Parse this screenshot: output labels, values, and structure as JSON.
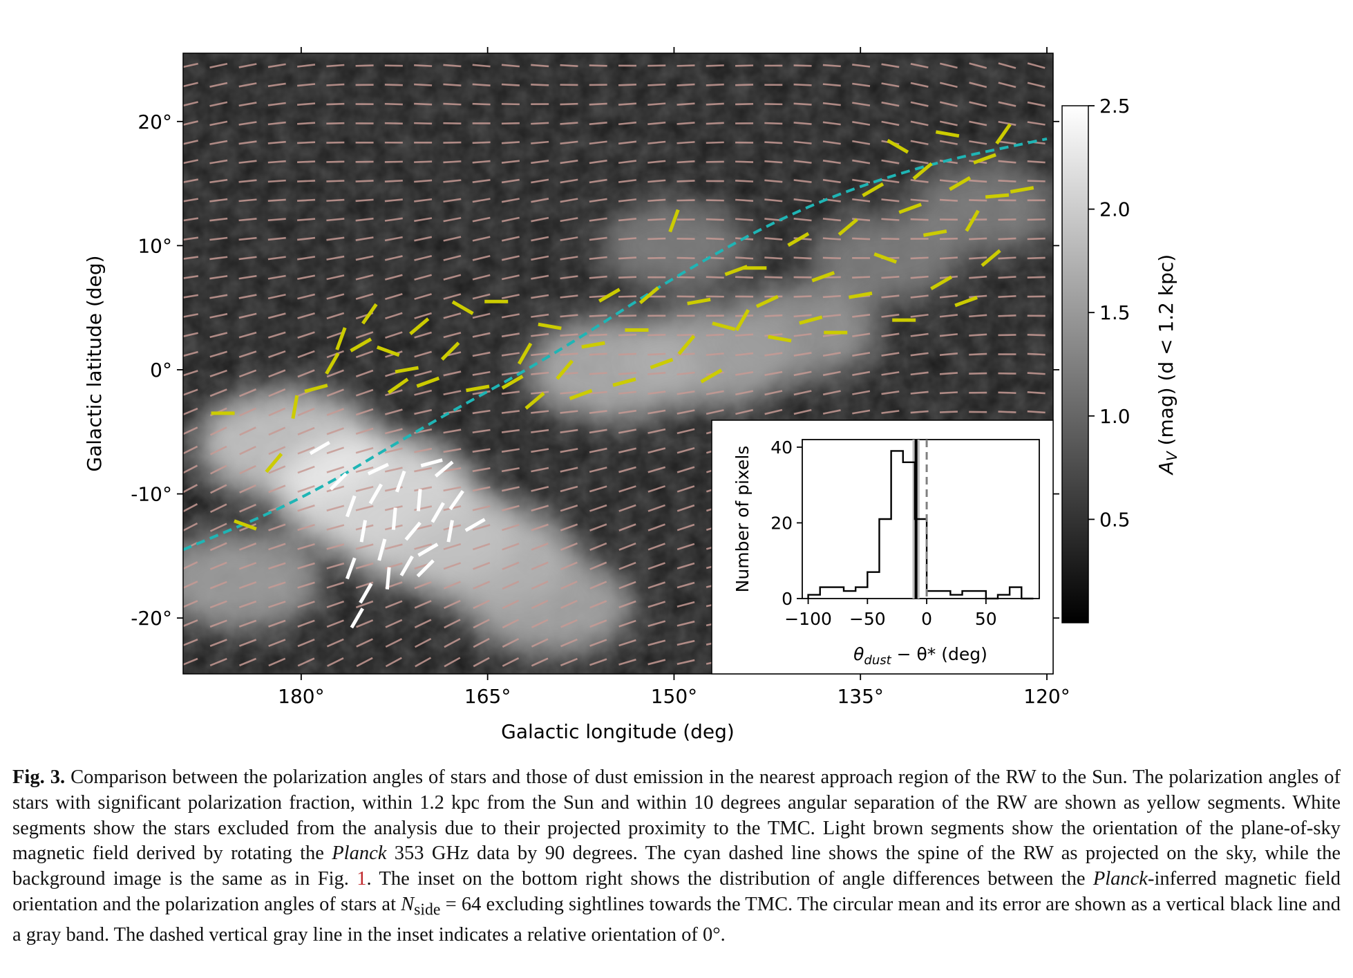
{
  "figure": {
    "label": "Fig. 3.",
    "caption_parts": [
      "Comparison between the polarization angles of stars and those of dust emission in the nearest approach region of the RW to the Sun. The polarization angles of stars with significant polarization fraction, within 1.2 kpc from the Sun and within 10 degrees angular separation of the RW are shown as yellow segments. White segments show the stars excluded from the analysis due to their projected proximity to the TMC. Light brown segments show the orientation of the plane-of-sky magnetic field derived by rotating the ",
      "Planck",
      " 353 GHz data by 90 degrees. The cyan dashed line shows the spine of the RW as projected on the sky, while the background image is the same as in Fig. ",
      "1",
      ". The inset on the bottom right shows the distribution of angle differences between the ",
      "Planck",
      "-inferred magnetic field orientation and the polarization angles of stars at ",
      "N",
      "side",
      " = 64 excluding sightlines towards the TMC. The circular mean and its error are shown as a vertical black line and a gray band. The dashed vertical gray line in the inset indicates a relative orientation of 0°."
    ]
  },
  "chart_data": [
    {
      "type": "scatter",
      "xlabel": "Galactic longitude (deg)",
      "ylabel": "Galactic latitude (deg)",
      "xlim": [
        189.5,
        119.5
      ],
      "ylim": [
        -24.5,
        25.5
      ],
      "xticks": [
        180,
        165,
        150,
        135,
        120
      ],
      "xtick_labels": [
        "180°",
        "165°",
        "150°",
        "135°",
        "120°"
      ],
      "yticks": [
        20,
        10,
        0,
        -10,
        -20
      ],
      "ytick_labels": [
        "20°",
        "10°",
        "0°",
        "-10°",
        "-20°"
      ],
      "colorbar": {
        "label_main": "A",
        "label_sub": "V",
        "label_rest": " (mag) (d < 1.2 kpc)",
        "range": [
          0,
          2.5
        ],
        "ticks": [
          2.5,
          2.0,
          1.5,
          1.0,
          0.5
        ],
        "tick_labels": [
          "2.5",
          "2.0",
          "1.5",
          "1.0",
          "0.5"
        ],
        "colormap": "gray"
      },
      "spine_line": {
        "color": "#1fb5b5",
        "style": "dashed",
        "points": [
          [
            189.5,
            -14.5
          ],
          [
            180,
            -10.5
          ],
          [
            170,
            -4.5
          ],
          [
            160,
            1.0
          ],
          [
            150,
            7.5
          ],
          [
            140,
            13.0
          ],
          [
            130,
            16.5
          ],
          [
            120,
            18.6
          ]
        ]
      },
      "background_dust_clumps": [
        {
          "l": 181,
          "b": -6,
          "level": 0.75
        },
        {
          "l": 174,
          "b": -10,
          "level": 0.9
        },
        {
          "l": 170,
          "b": -13,
          "level": 0.75
        },
        {
          "l": 165,
          "b": -15,
          "level": 0.65
        },
        {
          "l": 160,
          "b": -19,
          "level": 0.55
        },
        {
          "l": 155,
          "b": 0,
          "level": 0.6
        },
        {
          "l": 147,
          "b": 1,
          "level": 0.55
        },
        {
          "l": 140,
          "b": 3,
          "level": 0.45
        },
        {
          "l": 150,
          "b": 10,
          "level": 0.3
        },
        {
          "l": 133,
          "b": 9,
          "level": 0.3
        },
        {
          "l": 125,
          "b": 13,
          "level": 0.3
        },
        {
          "l": 185,
          "b": -17,
          "level": 0.5
        }
      ],
      "field_segment_color": "#c79a94",
      "yellow_segment_color": "#cccc00",
      "white_segment_color": "#ffffff",
      "yellow_segments": [
        [
          186.3,
          -3.5,
          0
        ],
        [
          184.5,
          -12.5,
          -20
        ],
        [
          182.2,
          -7.5,
          50
        ],
        [
          180.5,
          -3,
          80
        ],
        [
          178.8,
          -1.5,
          15
        ],
        [
          177.5,
          0.5,
          60
        ],
        [
          176.8,
          2.5,
          70
        ],
        [
          175.2,
          2,
          30
        ],
        [
          174.5,
          4.5,
          55
        ],
        [
          173.0,
          1.5,
          -20
        ],
        [
          172.2,
          -1.3,
          35
        ],
        [
          171.5,
          0.0,
          10
        ],
        [
          170.5,
          3.5,
          40
        ],
        [
          169.8,
          -1.0,
          20
        ],
        [
          168.0,
          1.5,
          45
        ],
        [
          167.0,
          5,
          -30
        ],
        [
          165.8,
          -1.5,
          10
        ],
        [
          164.3,
          5.5,
          0
        ],
        [
          163.0,
          -1.0,
          30
        ],
        [
          162.0,
          1.3,
          60
        ],
        [
          161.2,
          -2.5,
          40
        ],
        [
          160.0,
          3.5,
          -10
        ],
        [
          158.8,
          0,
          50
        ],
        [
          157.5,
          -2,
          20
        ],
        [
          156.5,
          2,
          10
        ],
        [
          155.2,
          6,
          30
        ],
        [
          154.0,
          -1.0,
          15
        ],
        [
          153.0,
          3.2,
          0
        ],
        [
          152.0,
          6,
          40
        ],
        [
          151.0,
          0.5,
          20
        ],
        [
          150.0,
          12,
          70
        ],
        [
          149.0,
          2,
          50
        ],
        [
          148.0,
          5.5,
          10
        ],
        [
          147.0,
          -0.5,
          30
        ],
        [
          146.0,
          3.5,
          -15
        ],
        [
          145.0,
          8,
          20
        ],
        [
          144.5,
          4,
          60
        ],
        [
          143.5,
          8.2,
          0
        ],
        [
          142.5,
          5.5,
          25
        ],
        [
          141.5,
          2.5,
          -10
        ],
        [
          140.0,
          10.5,
          30
        ],
        [
          139.0,
          4,
          15
        ],
        [
          138.0,
          7.5,
          20
        ],
        [
          137.0,
          3,
          0
        ],
        [
          136.0,
          11.5,
          40
        ],
        [
          135.0,
          6,
          10
        ],
        [
          134.0,
          14.5,
          30
        ],
        [
          133.0,
          9,
          -20
        ],
        [
          132.0,
          18,
          -30
        ],
        [
          131.0,
          13,
          20
        ],
        [
          130.0,
          16,
          40
        ],
        [
          129.0,
          11,
          10
        ],
        [
          128.0,
          19,
          -10
        ],
        [
          127.0,
          15,
          30
        ],
        [
          126.0,
          12,
          60
        ],
        [
          125.0,
          17,
          20
        ],
        [
          124.0,
          14,
          5
        ],
        [
          123.5,
          19,
          55
        ],
        [
          124.5,
          9,
          40
        ],
        [
          122.0,
          14.5,
          10
        ],
        [
          126.5,
          5.5,
          20
        ],
        [
          131.5,
          4,
          0
        ],
        [
          128.5,
          7,
          30
        ]
      ],
      "white_segments": [
        [
          178.5,
          -6.3,
          30
        ],
        [
          177.0,
          -9,
          45
        ],
        [
          176.0,
          -11,
          70
        ],
        [
          175.0,
          -13,
          80
        ],
        [
          174.0,
          -10,
          60
        ],
        [
          173.5,
          -14.5,
          75
        ],
        [
          172.5,
          -12,
          85
        ],
        [
          172.0,
          -9,
          70
        ],
        [
          171.0,
          -13,
          50
        ],
        [
          170.5,
          -10.5,
          85
        ],
        [
          169.8,
          -14.5,
          30
        ],
        [
          169.0,
          -11.5,
          60
        ],
        [
          168.5,
          -8,
          40
        ],
        [
          176.0,
          -16,
          70
        ],
        [
          174.8,
          -18,
          60
        ],
        [
          173.0,
          -16.8,
          85
        ],
        [
          171.5,
          -15.8,
          60
        ],
        [
          170.0,
          -16,
          45
        ],
        [
          168.0,
          -13,
          80
        ],
        [
          167.5,
          -10.5,
          55
        ],
        [
          166.0,
          -12.5,
          30
        ],
        [
          175.5,
          -20,
          60
        ],
        [
          169.5,
          -7.5,
          15
        ],
        [
          173.8,
          -8,
          25
        ]
      ]
    },
    {
      "type": "bar",
      "xlabel_theta": "θ",
      "xlabel_dust": "dust",
      "xlabel_rest": " − θ* (deg)",
      "ylabel": "Number of pixels",
      "xlim": [
        -105,
        95
      ],
      "ylim": [
        0,
        42
      ],
      "xticks": [
        -100,
        -50,
        0,
        50
      ],
      "xtick_labels": [
        "−100",
        "−50",
        "0",
        "50"
      ],
      "yticks": [
        0,
        20,
        40
      ],
      "ytick_labels": [
        "0",
        "20",
        "40"
      ],
      "bin_edges": [
        -100,
        -90,
        -80,
        -70,
        -60,
        -50,
        -40,
        -30,
        -20,
        -10,
        0,
        10,
        20,
        30,
        40,
        50,
        60,
        70,
        80,
        90
      ],
      "counts": [
        1,
        3,
        3,
        2,
        3,
        7,
        21,
        39,
        36,
        21,
        2,
        2,
        1,
        2,
        2,
        0,
        1,
        3,
        0
      ],
      "circular_mean": -9,
      "circular_mean_error": 3,
      "reference_line": 0
    }
  ]
}
